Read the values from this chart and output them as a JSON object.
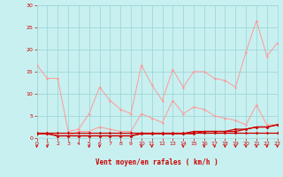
{
  "bg_color": "#c8f0f0",
  "grid_color": "#a0d8d8",
  "line_color_light": "#ff9999",
  "line_color_dark": "#cc0000",
  "xlabel": "Vent moyen/en rafales ( km/h )",
  "xlim": [
    0,
    23
  ],
  "ylim": [
    0,
    30
  ],
  "yticks": [
    0,
    5,
    10,
    15,
    20,
    25,
    30
  ],
  "xticks": [
    0,
    1,
    2,
    3,
    4,
    5,
    6,
    7,
    8,
    9,
    10,
    11,
    12,
    13,
    14,
    15,
    16,
    17,
    18,
    19,
    20,
    21,
    22,
    23
  ],
  "series": {
    "line1_x": [
      0,
      1,
      2,
      3,
      4,
      5,
      6,
      7,
      8,
      9,
      10,
      11,
      12,
      13,
      14,
      15,
      16,
      17,
      18,
      19,
      20,
      21,
      22,
      23
    ],
    "line1_y": [
      16.5,
      13.5,
      13.5,
      1.5,
      2.0,
      5.5,
      11.5,
      8.5,
      6.5,
      5.5,
      16.5,
      12.0,
      8.5,
      15.5,
      11.5,
      15.0,
      15.0,
      13.5,
      13.0,
      11.5,
      19.5,
      26.5,
      18.5,
      21.5
    ],
    "line2_x": [
      0,
      1,
      2,
      3,
      4,
      5,
      6,
      7,
      8,
      9,
      10,
      11,
      12,
      13,
      14,
      15,
      16,
      17,
      18,
      19,
      20,
      21,
      22,
      23
    ],
    "line2_y": [
      1.0,
      1.0,
      0.5,
      0.5,
      1.5,
      1.5,
      2.5,
      2.0,
      1.5,
      1.5,
      5.5,
      4.5,
      3.5,
      8.5,
      5.5,
      7.0,
      6.5,
      5.0,
      4.5,
      4.0,
      3.0,
      7.5,
      3.0,
      3.0
    ],
    "line3_x": [
      0,
      1,
      2,
      3,
      4,
      5,
      6,
      7,
      8,
      9,
      10,
      11,
      12,
      13,
      14,
      15,
      16,
      17,
      18,
      19,
      20,
      21,
      22,
      23
    ],
    "line3_y": [
      1.0,
      1.0,
      0.5,
      0.5,
      0.5,
      0.5,
      0.5,
      0.5,
      0.5,
      0.5,
      1.0,
      1.0,
      1.0,
      1.0,
      1.0,
      1.5,
      1.5,
      1.5,
      1.5,
      1.5,
      2.0,
      2.5,
      2.5,
      3.0
    ],
    "line4_x": [
      0,
      1,
      2,
      3,
      4,
      5,
      6,
      7,
      8,
      9,
      10,
      11,
      12,
      13,
      14,
      15,
      16,
      17,
      18,
      19,
      20,
      21,
      22,
      23
    ],
    "line4_y": [
      1.0,
      1.0,
      0.5,
      0.5,
      0.5,
      0.5,
      0.5,
      0.5,
      0.5,
      0.5,
      1.0,
      1.0,
      1.0,
      1.0,
      1.0,
      1.0,
      1.5,
      1.5,
      1.5,
      2.0,
      2.0,
      2.5,
      2.5,
      3.0
    ],
    "line5_x": [
      0,
      1,
      2,
      3,
      4,
      5,
      6,
      7,
      8,
      9,
      10,
      11,
      12,
      13,
      14,
      15,
      16,
      17,
      18,
      19,
      20,
      21,
      22,
      23
    ],
    "line5_y": [
      1.2,
      1.2,
      1.2,
      1.2,
      1.2,
      1.2,
      1.2,
      1.2,
      1.2,
      1.2,
      1.2,
      1.2,
      1.2,
      1.2,
      1.2,
      1.2,
      1.2,
      1.2,
      1.2,
      1.2,
      1.2,
      1.2,
      1.2,
      1.2
    ]
  },
  "arrows_x": [
    0,
    1,
    5,
    6,
    10,
    11,
    14,
    16,
    17,
    18,
    19,
    20,
    21,
    22,
    23
  ],
  "font_color": "#cc0000",
  "marker_size": 1.8,
  "linewidth_light": 0.7,
  "linewidth_dark": 0.9
}
